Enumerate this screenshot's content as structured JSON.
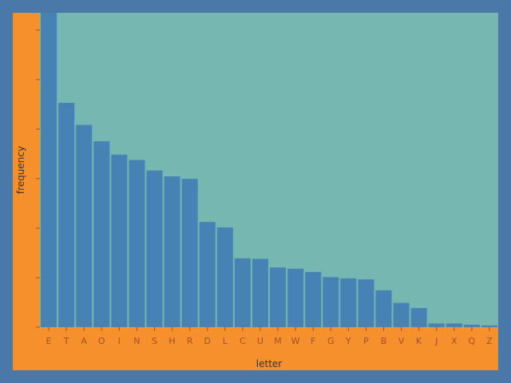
{
  "chart_data": {
    "type": "bar",
    "xlabel": "letter",
    "ylabel": "frequency",
    "categories": [
      "E",
      "T",
      "A",
      "O",
      "I",
      "N",
      "S",
      "H",
      "R",
      "D",
      "L",
      "C",
      "U",
      "M",
      "W",
      "F",
      "G",
      "Y",
      "P",
      "B",
      "V",
      "K",
      "J",
      "X",
      "Q",
      "Z"
    ],
    "values": [
      0.127,
      0.0906,
      0.0817,
      0.0751,
      0.0697,
      0.0675,
      0.0633,
      0.0609,
      0.0599,
      0.0425,
      0.0403,
      0.0278,
      0.0276,
      0.0241,
      0.0236,
      0.0223,
      0.0202,
      0.0197,
      0.0193,
      0.0149,
      0.0098,
      0.0077,
      0.0015,
      0.0015,
      0.001,
      0.0007
    ],
    "ylim": [
      0,
      0.127
    ],
    "y_ticks": [
      0,
      0.02,
      0.04,
      0.06,
      0.08,
      0.1,
      0.12
    ],
    "grid": false,
    "colors": {
      "bar": "#4682b4",
      "plot_background": "#76b7b2",
      "frame": "#f5902c",
      "page": "#4a78a8"
    }
  }
}
